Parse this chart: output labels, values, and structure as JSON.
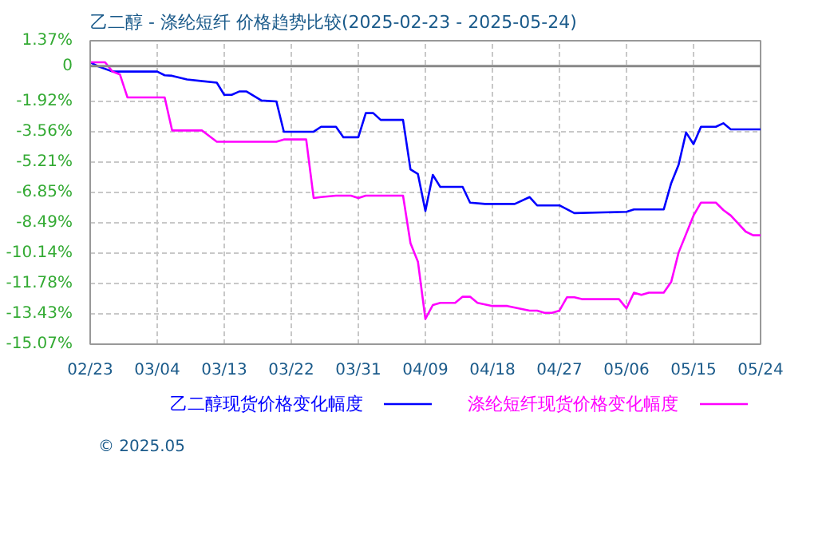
{
  "chart_data": {
    "type": "line",
    "title": "乙二醇 - 涤纶短纤 价格趋势比较(2025-02-23 - 2025-05-24)",
    "xlim": [
      "2025-02-23",
      "2025-05-24"
    ],
    "xticks": [
      {
        "value": "2025-02-23",
        "label": "02/23"
      },
      {
        "value": "2025-03-04",
        "label": "03/04"
      },
      {
        "value": "2025-03-13",
        "label": "03/13"
      },
      {
        "value": "2025-03-22",
        "label": "03/22"
      },
      {
        "value": "2025-03-31",
        "label": "03/31"
      },
      {
        "value": "2025-04-09",
        "label": "04/09"
      },
      {
        "value": "2025-04-18",
        "label": "04/18"
      },
      {
        "value": "2025-04-27",
        "label": "04/27"
      },
      {
        "value": "2025-05-06",
        "label": "05/06"
      },
      {
        "value": "2025-05-15",
        "label": "05/15"
      },
      {
        "value": "2025-05-24",
        "label": "05/24"
      }
    ],
    "ylim": [
      -15.07,
      1.37
    ],
    "yticks": [
      {
        "value": 1.37,
        "label": "1.37%"
      },
      0,
      {
        "value": -1.92,
        "label": "-1.92%"
      },
      {
        "value": -3.56,
        "label": "-3.56%"
      },
      {
        "value": -5.21,
        "label": "-5.21%"
      },
      {
        "value": -6.85,
        "label": "-6.85%"
      },
      {
        "value": -8.49,
        "label": "-8.49%"
      },
      {
        "value": -10.14,
        "label": "-10.14%"
      },
      {
        "value": -11.78,
        "label": "-11.78%"
      },
      {
        "value": -13.43,
        "label": "-13.43%"
      },
      {
        "value": -15.07,
        "label": "-15.07%"
      }
    ],
    "grid": true,
    "legend": "bottom",
    "marker": "none",
    "line_style": "solid",
    "ref_lines": [
      {
        "axis": "y",
        "value": 0,
        "label": null,
        "color": "#888888"
      }
    ],
    "annotations": [
      "© 2025.05"
    ],
    "series": [
      {
        "name": "乙二醇现货价格变化幅度",
        "color": "#0000ff",
        "x": [
          "2025-02-23",
          "2025-02-24",
          "2025-02-26",
          "2025-03-04",
          "2025-03-05",
          "2025-03-06",
          "2025-03-08",
          "2025-03-12",
          "2025-03-13",
          "2025-03-14",
          "2025-03-15",
          "2025-03-16",
          "2025-03-18",
          "2025-03-20",
          "2025-03-21",
          "2025-03-25",
          "2025-03-26",
          "2025-03-28",
          "2025-03-29",
          "2025-03-31",
          "2025-04-01",
          "2025-04-02",
          "2025-04-03",
          "2025-04-06",
          "2025-04-07",
          "2025-04-08",
          "2025-04-09",
          "2025-04-10",
          "2025-04-11",
          "2025-04-14",
          "2025-04-15",
          "2025-04-17",
          "2025-04-21",
          "2025-04-23",
          "2025-04-24",
          "2025-04-27",
          "2025-04-29",
          "2025-05-06",
          "2025-05-07",
          "2025-05-11",
          "2025-05-12",
          "2025-05-13",
          "2025-05-14",
          "2025-05-15",
          "2025-05-16",
          "2025-05-18",
          "2025-05-19",
          "2025-05-20",
          "2025-05-24"
        ],
        "values": [
          0.2,
          0,
          -0.3,
          -0.3,
          -0.5,
          -0.53,
          -0.73,
          -0.9,
          -1.56,
          -1.56,
          -1.38,
          -1.38,
          -1.87,
          -1.92,
          -3.56,
          -3.56,
          -3.29,
          -3.29,
          -3.86,
          -3.86,
          -2.55,
          -2.55,
          -2.92,
          -2.92,
          -5.6,
          -5.85,
          -7.85,
          -5.9,
          -6.55,
          -6.55,
          -7.4,
          -7.47,
          -7.47,
          -7.1,
          -7.55,
          -7.55,
          -7.97,
          -7.9,
          -7.77,
          -7.77,
          -6.35,
          -5.35,
          -3.6,
          -4.23,
          -3.29,
          -3.29,
          -3.1,
          -3.43,
          -3.43
        ]
      },
      {
        "name": "涤纶短纤现货价格变化幅度",
        "color": "#ff00ff",
        "x": [
          "2025-02-23",
          "2025-02-25",
          "2025-02-26",
          "2025-02-27",
          "2025-02-28",
          "2025-03-05",
          "2025-03-06",
          "2025-03-10",
          "2025-03-12",
          "2025-03-20",
          "2025-03-21",
          "2025-03-24",
          "2025-03-25",
          "2025-03-26",
          "2025-03-28",
          "2025-03-30",
          "2025-03-31",
          "2025-04-01",
          "2025-04-06",
          "2025-04-07",
          "2025-04-08",
          "2025-04-09",
          "2025-04-10",
          "2025-04-11",
          "2025-04-13",
          "2025-04-14",
          "2025-04-15",
          "2025-04-16",
          "2025-04-18",
          "2025-04-20",
          "2025-04-23",
          "2025-04-24",
          "2025-04-25",
          "2025-04-26",
          "2025-04-27",
          "2025-04-28",
          "2025-04-29",
          "2025-04-30",
          "2025-05-05",
          "2025-05-06",
          "2025-05-07",
          "2025-05-08",
          "2025-05-09",
          "2025-05-11",
          "2025-05-12",
          "2025-05-13",
          "2025-05-15",
          "2025-05-16",
          "2025-05-18",
          "2025-05-19",
          "2025-05-20",
          "2025-05-22",
          "2025-05-23",
          "2025-05-24"
        ],
        "values": [
          0.2,
          0.2,
          -0.3,
          -0.46,
          -1.7,
          -1.7,
          -3.49,
          -3.49,
          -4.1,
          -4.1,
          -3.98,
          -3.98,
          -7.15,
          -7.1,
          -7.02,
          -7.02,
          -7.15,
          -7.02,
          -7.02,
          -9.6,
          -10.6,
          -13.7,
          -12.95,
          -12.83,
          -12.83,
          -12.5,
          -12.5,
          -12.83,
          -13.0,
          -13.0,
          -13.25,
          -13.25,
          -13.37,
          -13.37,
          -13.25,
          -12.53,
          -12.53,
          -12.63,
          -12.63,
          -13.13,
          -12.28,
          -12.4,
          -12.28,
          -12.28,
          -11.7,
          -10.1,
          -8.1,
          -7.4,
          -7.4,
          -7.8,
          -8.1,
          -8.97,
          -9.17,
          -9.17
        ]
      }
    ]
  }
}
